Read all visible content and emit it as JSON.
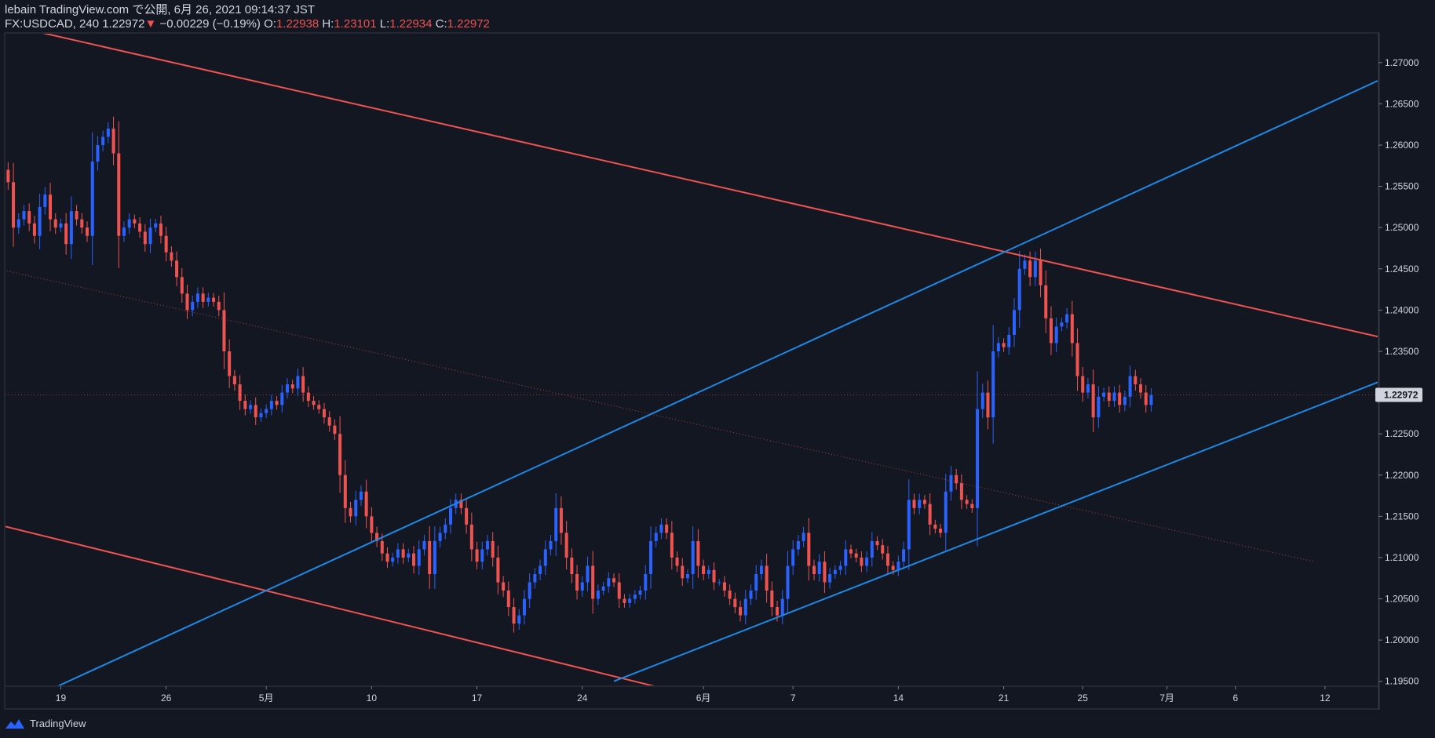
{
  "header": {
    "line1": "lebain TradingView.com で公開, 6月 26, 2021 09:14:37 JST",
    "symbol": "FX:USDCAD, 240",
    "last": "1.22972",
    "change_arrow": "▼",
    "change": "−0.00229 (−0.19%)",
    "o_label": "O:",
    "o_val": "1.22938",
    "h_label": "H:",
    "h_val": "1.23101",
    "l_label": "L:",
    "l_val": "1.22934",
    "c_label": "C:",
    "c_val": "1.22972"
  },
  "footer": {
    "brand": "TradingView"
  },
  "colors": {
    "background": "#131722",
    "up": "#2962ff",
    "down": "#ef5350",
    "trend_red": "#ef5350",
    "trend_blue": "#1e88e5",
    "grid_text": "#d1d4dc",
    "price_label_bg": "#d1d4dc"
  },
  "chart_data": {
    "type": "candlestick",
    "symbol": "FX:USDCAD",
    "timeframe": "240",
    "ylim": [
      1.1945,
      1.2735
    ],
    "y_ticks": [
      "1.27000",
      "1.26500",
      "1.26000",
      "1.25500",
      "1.25000",
      "1.24500",
      "1.24000",
      "1.23500",
      "1.23000",
      "1.22500",
      "1.22000",
      "1.21500",
      "1.21000",
      "1.20500",
      "1.20000",
      "1.19500"
    ],
    "x_ticks": [
      {
        "label": "19",
        "i": 10
      },
      {
        "label": "26",
        "i": 30
      },
      {
        "label": "5月",
        "i": 49
      },
      {
        "label": "10",
        "i": 69
      },
      {
        "label": "17",
        "i": 89
      },
      {
        "label": "24",
        "i": 109
      },
      {
        "label": "6月",
        "i": 132
      },
      {
        "label": "7",
        "i": 149
      },
      {
        "label": "14",
        "i": 169
      },
      {
        "label": "21",
        "i": 189
      },
      {
        "label": "25",
        "i": 204
      },
      {
        "label": "7月",
        "i": 220
      },
      {
        "label": "6",
        "i": 233
      },
      {
        "label": "12",
        "i": 250
      }
    ],
    "x_range": [
      -0.5,
      260
    ],
    "current_price": "1.22972",
    "close": [
      1.2555,
      1.25,
      1.251,
      1.252,
      1.2505,
      1.249,
      1.2525,
      1.254,
      1.251,
      1.25,
      1.2505,
      1.248,
      1.252,
      1.251,
      1.25,
      1.249,
      1.258,
      1.26,
      1.261,
      1.262,
      1.259,
      1.249,
      1.25,
      1.251,
      1.2505,
      1.2495,
      1.248,
      1.25,
      1.2505,
      1.249,
      1.247,
      1.246,
      1.244,
      1.242,
      1.24,
      1.241,
      1.242,
      1.241,
      1.2415,
      1.241,
      1.24,
      1.235,
      1.232,
      1.231,
      1.229,
      1.228,
      1.2285,
      1.227,
      1.2275,
      1.228,
      1.229,
      1.2285,
      1.23,
      1.231,
      1.2305,
      1.232,
      1.23,
      1.229,
      1.2285,
      1.228,
      1.227,
      1.226,
      1.225,
      1.22,
      1.216,
      1.215,
      1.217,
      1.218,
      1.215,
      1.213,
      1.212,
      1.2105,
      1.2095,
      1.21,
      1.211,
      1.21,
      1.2105,
      1.209,
      1.211,
      1.212,
      1.208,
      1.212,
      1.213,
      1.214,
      1.216,
      1.217,
      1.216,
      1.214,
      1.211,
      1.2095,
      1.211,
      1.212,
      1.21,
      1.207,
      1.206,
      1.204,
      1.202,
      1.203,
      1.205,
      1.207,
      1.208,
      1.209,
      1.211,
      1.212,
      1.216,
      1.213,
      1.21,
      1.208,
      1.206,
      1.207,
      1.209,
      1.205,
      1.206,
      1.2065,
      1.2075,
      1.207,
      1.205,
      1.2045,
      1.205,
      1.2055,
      1.206,
      1.208,
      1.212,
      1.213,
      1.214,
      1.213,
      1.21,
      1.209,
      1.2075,
      1.208,
      1.212,
      1.209,
      1.208,
      1.2085,
      1.207,
      1.207,
      1.206,
      1.205,
      1.204,
      1.203,
      1.205,
      1.206,
      1.208,
      1.209,
      1.206,
      1.204,
      1.203,
      1.205,
      1.209,
      1.211,
      1.212,
      1.213,
      1.209,
      1.208,
      1.2095,
      1.207,
      1.208,
      1.2085,
      1.209,
      1.211,
      1.2105,
      1.21,
      1.209,
      1.21,
      1.212,
      1.2115,
      1.2105,
      1.209,
      1.2085,
      1.2095,
      1.211,
      1.217,
      1.216,
      1.217,
      1.2165,
      1.214,
      1.2135,
      1.213,
      1.218,
      1.22,
      1.219,
      1.217,
      1.2165,
      1.216,
      1.228,
      1.23,
      1.227,
      1.235,
      1.236,
      1.2355,
      1.237,
      1.24,
      1.245,
      1.246,
      1.244,
      1.246,
      1.243,
      1.239,
      1.236,
      1.238,
      1.2385,
      1.2395,
      1.236,
      1.232,
      1.23,
      1.231,
      1.227,
      1.2295,
      1.23,
      1.229,
      1.23,
      1.2285,
      1.2295,
      1.232,
      1.231,
      1.23,
      1.2285,
      1.2297
    ],
    "trendlines": [
      {
        "name": "upper-red",
        "color": "#ef5350",
        "p1": [
          -10,
          1.276
        ],
        "p2": [
          200,
          1.2455
        ],
        "extend": "right"
      },
      {
        "name": "lower-red",
        "color": "#ef5350",
        "p1": [
          -2,
          1.214
        ],
        "p2": [
          138,
          1.192
        ],
        "extend": "none"
      },
      {
        "name": "upper-blue",
        "color": "#1e88e5",
        "p1": [
          8,
          1.194
        ],
        "p2": [
          189,
          1.247
        ],
        "extend": "right"
      },
      {
        "name": "lower-blue",
        "color": "#1e88e5",
        "p1": [
          115,
          1.195
        ],
        "p2": [
          171,
          1.209
        ],
        "extend": "right"
      },
      {
        "name": "mid-dotted",
        "color": "#ef5350",
        "p1": [
          -2,
          1.245
        ],
        "p2": [
          248,
          1.2095
        ],
        "extend": "none",
        "dotted": true
      }
    ]
  }
}
